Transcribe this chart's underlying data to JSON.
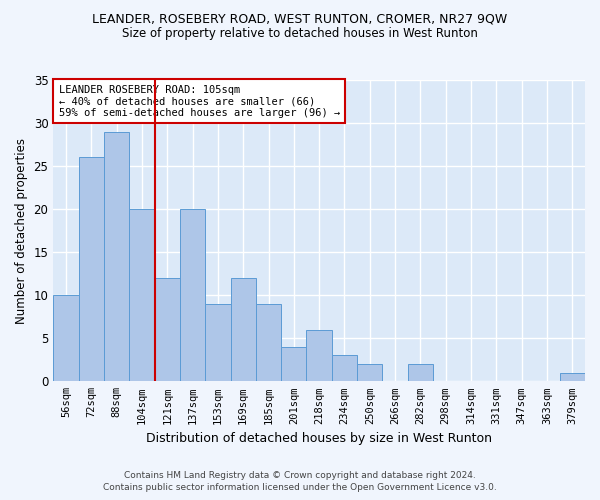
{
  "title": "LEANDER, ROSEBERY ROAD, WEST RUNTON, CROMER, NR27 9QW",
  "subtitle": "Size of property relative to detached houses in West Runton",
  "xlabel": "Distribution of detached houses by size in West Runton",
  "ylabel": "Number of detached properties",
  "footer_line1": "Contains HM Land Registry data © Crown copyright and database right 2024.",
  "footer_line2": "Contains public sector information licensed under the Open Government Licence v3.0.",
  "categories": [
    "56sqm",
    "72sqm",
    "88sqm",
    "104sqm",
    "121sqm",
    "137sqm",
    "153sqm",
    "169sqm",
    "185sqm",
    "201sqm",
    "218sqm",
    "234sqm",
    "250sqm",
    "266sqm",
    "282sqm",
    "298sqm",
    "314sqm",
    "331sqm",
    "347sqm",
    "363sqm",
    "379sqm"
  ],
  "values": [
    10,
    26,
    29,
    20,
    12,
    20,
    9,
    12,
    9,
    4,
    6,
    3,
    2,
    0,
    2,
    0,
    0,
    0,
    0,
    0,
    1
  ],
  "bar_color": "#aec6e8",
  "bar_edge_color": "#5b9bd5",
  "background_color": "#dce9f8",
  "fig_background_color": "#f0f5fd",
  "grid_color": "#ffffff",
  "property_size_index": 3,
  "red_line_color": "#cc0000",
  "annotation_text_line1": "LEANDER ROSEBERY ROAD: 105sqm",
  "annotation_text_line2": "← 40% of detached houses are smaller (66)",
  "annotation_text_line3": "59% of semi-detached houses are larger (96) →",
  "annotation_box_edge_color": "#cc0000",
  "annotation_box_face_color": "#ffffff",
  "ylim": [
    0,
    35
  ],
  "yticks": [
    0,
    5,
    10,
    15,
    20,
    25,
    30,
    35
  ]
}
